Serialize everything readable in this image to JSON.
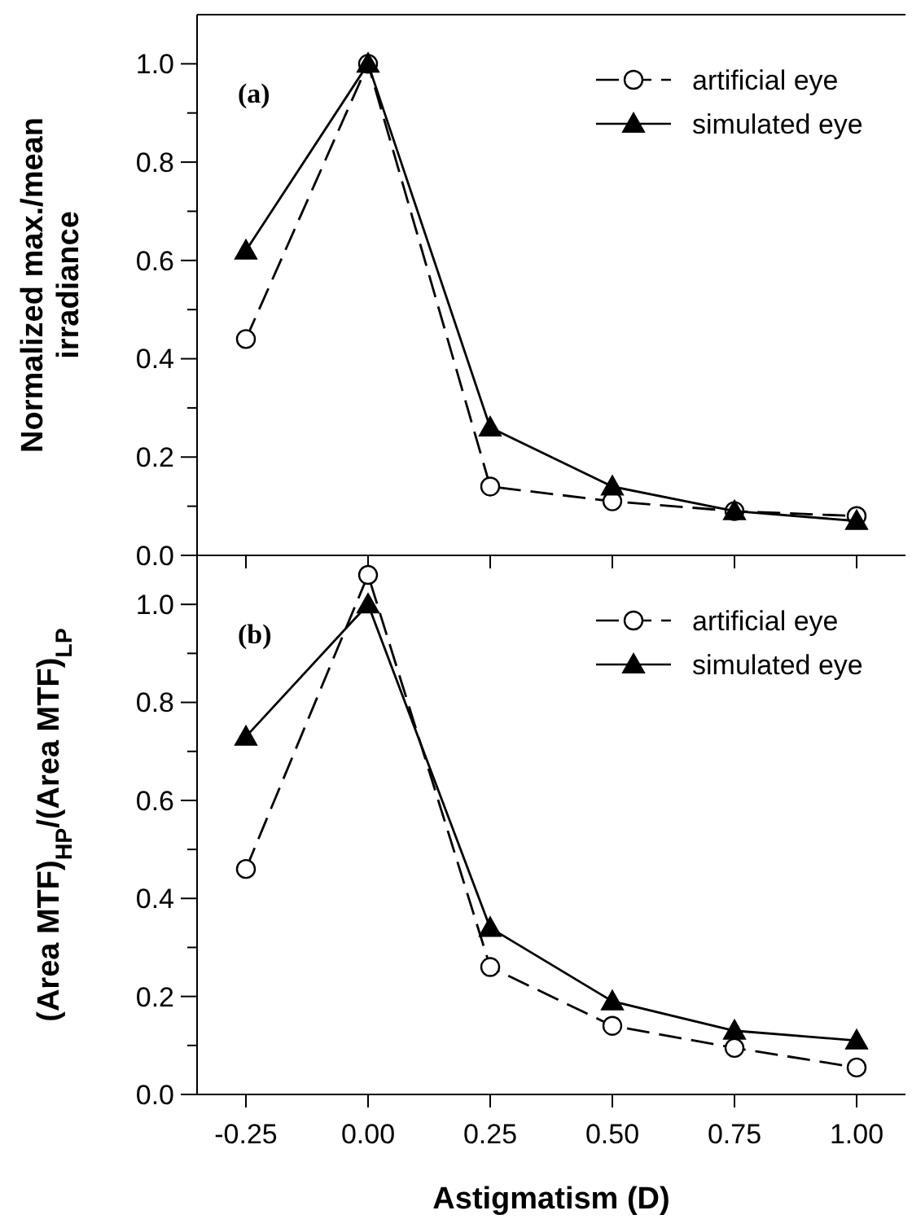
{
  "chart_data": [
    {
      "type": "line",
      "ylabel": "Normalized  max./mean irradiance",
      "annotations": [
        "(a)"
      ],
      "x": [
        -0.25,
        0,
        0.25,
        0.5,
        0.75,
        1.0
      ],
      "xlim": [
        -0.35,
        1.1
      ],
      "xticks": [
        -0.25,
        0,
        0.25,
        0.5,
        0.75,
        1
      ],
      "ylim": [
        0,
        1.1
      ],
      "yticks": [
        {
          "value": 0,
          "label": "0.0"
        },
        {
          "value": 0.1,
          "label": null
        },
        0.2,
        {
          "value": 0.3,
          "label": null
        },
        0.4,
        {
          "value": 0.5,
          "label": null
        },
        0.6,
        {
          "value": 0.7,
          "label": null
        },
        0.8,
        {
          "value": 0.9,
          "label": null
        },
        {
          "value": 1,
          "label": "1.0"
        }
      ],
      "tick_labels": "y",
      "legend": "top right",
      "series": [
        {
          "name": "artificial eye",
          "color": "#000000",
          "marker": "circle",
          "line_style": "dashed",
          "values": [
            0.44,
            1.0,
            0.14,
            0.11,
            0.09,
            0.08
          ]
        },
        {
          "name": "simulated eye",
          "color": "#000000",
          "marker": "triangle",
          "line_style": "solid",
          "values": [
            0.62,
            1.0,
            0.26,
            0.14,
            0.09,
            0.07
          ]
        }
      ]
    },
    {
      "type": "line",
      "ylabel": "(Area MTF)$_{HP}$/(Area MTF)$_{LP}$",
      "xlabel": "Astigmatism (D)",
      "annotations": [
        "(b)"
      ],
      "x": [
        -0.25,
        0,
        0.25,
        0.5,
        0.75,
        1.0
      ],
      "xlim": [
        -0.35,
        1.1
      ],
      "xticks": [
        -0.25,
        {
          "value": 0,
          "label": "0.00"
        },
        0.25,
        {
          "value": 0.5,
          "label": "0.50"
        },
        0.75,
        {
          "value": 1,
          "label": "1.00"
        }
      ],
      "ylim": [
        0,
        1.1
      ],
      "yticks": [
        {
          "value": 0,
          "label": "0.0"
        },
        {
          "value": 0.1,
          "label": null
        },
        0.2,
        {
          "value": 0.3,
          "label": null
        },
        0.4,
        {
          "value": 0.5,
          "label": null
        },
        0.6,
        {
          "value": 0.7,
          "label": null
        },
        0.8,
        {
          "value": 0.9,
          "label": null
        },
        {
          "value": 1,
          "label": "1.0"
        }
      ],
      "legend": "top right",
      "series": [
        {
          "name": "artificial eye",
          "color": "#000000",
          "marker": "circle",
          "line_style": "dashed",
          "values": [
            0.46,
            1.06,
            0.26,
            0.14,
            0.095,
            0.055
          ]
        },
        {
          "name": "simulated eye",
          "color": "#000000",
          "marker": "triangle",
          "line_style": "solid",
          "values": [
            0.73,
            1.0,
            0.34,
            0.19,
            0.13,
            0.11
          ]
        }
      ]
    }
  ]
}
